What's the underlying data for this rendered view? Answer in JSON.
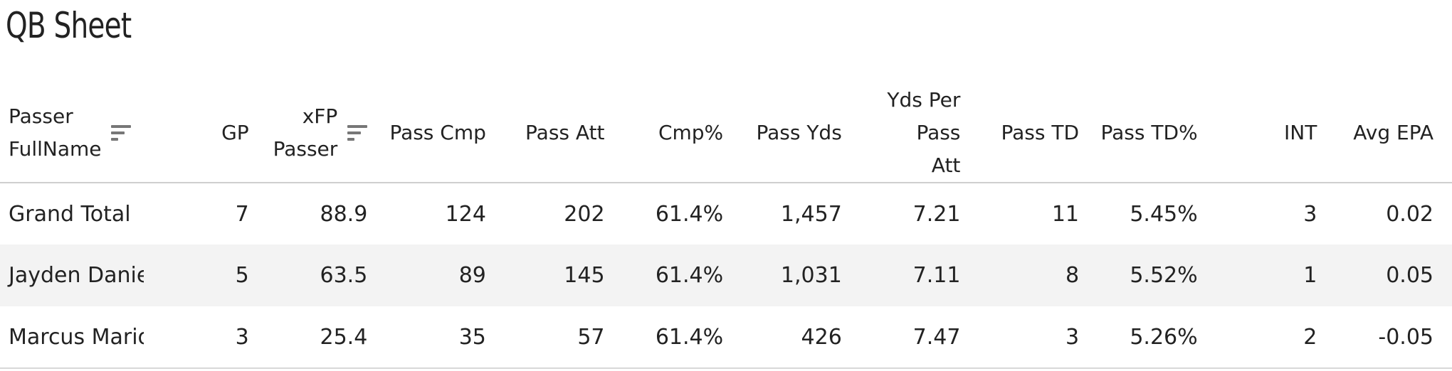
{
  "title": "QB Sheet",
  "icons": {
    "sort": "sort-lines-icon"
  },
  "table": {
    "columns": [
      {
        "key": "passer",
        "line1": "Passer",
        "line2": "FullName",
        "sortable": true
      },
      {
        "key": "gp",
        "label": "GP"
      },
      {
        "key": "xfp",
        "line1": "xFP",
        "line2": "Passer",
        "sortable": true
      },
      {
        "key": "pass_cmp",
        "label": "Pass Cmp"
      },
      {
        "key": "pass_att",
        "label": "Pass Att"
      },
      {
        "key": "cmp_pct",
        "label": "Cmp%"
      },
      {
        "key": "pass_yds",
        "label": "Pass Yds"
      },
      {
        "key": "yds_per_att",
        "line1": "Yds Per Pass",
        "line2": "Att"
      },
      {
        "key": "pass_td",
        "label": "Pass TD"
      },
      {
        "key": "pass_td_pct",
        "label": "Pass TD%"
      },
      {
        "key": "int",
        "label": "INT"
      },
      {
        "key": "avg_epa",
        "label": "Avg EPA"
      }
    ],
    "rows": [
      [
        "Grand Total",
        "7",
        "88.9",
        "124",
        "202",
        "61.4%",
        "1,457",
        "7.21",
        "11",
        "5.45%",
        "3",
        "0.02"
      ],
      [
        "Jayden Daniels",
        "5",
        "63.5",
        "89",
        "145",
        "61.4%",
        "1,031",
        "7.11",
        "8",
        "5.52%",
        "1",
        "0.05"
      ],
      [
        "Marcus Mariota",
        "3",
        "25.4",
        "35",
        "57",
        "61.4%",
        "426",
        "7.47",
        "3",
        "5.26%",
        "2",
        "-0.05"
      ]
    ]
  }
}
